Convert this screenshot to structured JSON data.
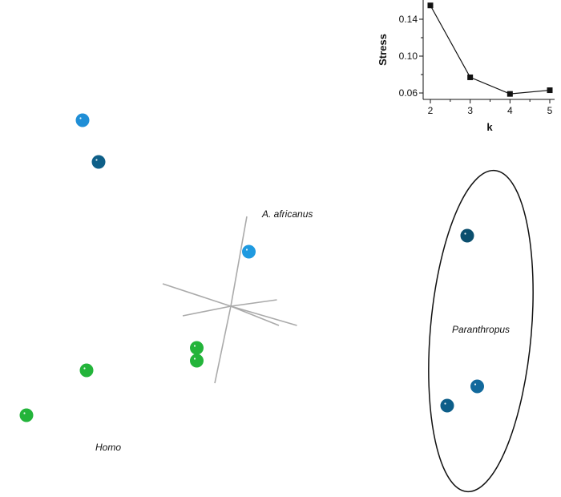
{
  "chart_data": [
    {
      "type": "scatter",
      "title": "",
      "xlabel": "",
      "ylabel": "",
      "grid": false,
      "legend": "none",
      "group_labels": [
        {
          "text": "A. africanus"
        },
        {
          "text": "Paranthropus"
        },
        {
          "text": "Homo"
        }
      ],
      "groups": {
        "Paranthropus": {
          "enclosure": "ellipse"
        }
      },
      "points": [
        {
          "x": -0.74,
          "y": 0.58,
          "color": "#1f8ed6"
        },
        {
          "x": -0.66,
          "y": 0.45,
          "color": "#0e5f88"
        },
        {
          "x": 0.09,
          "y": 0.17,
          "color": "#1f9ae0"
        },
        {
          "x": 1.18,
          "y": 0.22,
          "color": "#0b4f6e"
        },
        {
          "x": 1.23,
          "y": -0.25,
          "color": "#12699c"
        },
        {
          "x": 1.08,
          "y": -0.31,
          "color": "#0d5e89"
        },
        {
          "x": -0.17,
          "y": -0.13,
          "color": "#23b43a"
        },
        {
          "x": -0.17,
          "y": -0.17,
          "color": "#23b43a"
        },
        {
          "x": -0.72,
          "y": -0.2,
          "color": "#23b43a"
        },
        {
          "x": -1.02,
          "y": -0.34,
          "color": "#23b43a"
        }
      ],
      "biplot_vectors": [
        {
          "dx": 0.08,
          "dy": 0.28
        },
        {
          "dx": -0.08,
          "dy": -0.24
        },
        {
          "dx": -0.34,
          "dy": 0.07
        },
        {
          "dx": 0.24,
          "dy": -0.06
        },
        {
          "dx": 0.33,
          "dy": -0.06
        },
        {
          "dx": -0.24,
          "dy": -0.03
        },
        {
          "dx": 0.23,
          "dy": 0.02
        }
      ],
      "colors": {
        "origin_vectors": "#aaaaaa",
        "ellipse": "#111111"
      }
    },
    {
      "type": "line",
      "title": "",
      "xlabel": "k",
      "ylabel": "Stress",
      "x": [
        2,
        3,
        4,
        5
      ],
      "y": [
        0.155,
        0.077,
        0.059,
        0.063
      ],
      "xlim": [
        2,
        5
      ],
      "ylim": [
        0.05,
        0.16
      ],
      "xticks": [
        "2",
        "3",
        "4",
        "5"
      ],
      "yticks": [
        "0.06",
        "0.10",
        "0.14"
      ],
      "ytick_values": [
        0.06,
        0.1,
        0.14
      ],
      "marker": "square",
      "grid": false,
      "colors": {
        "line": "#111111",
        "marker": "#111111"
      }
    }
  ]
}
